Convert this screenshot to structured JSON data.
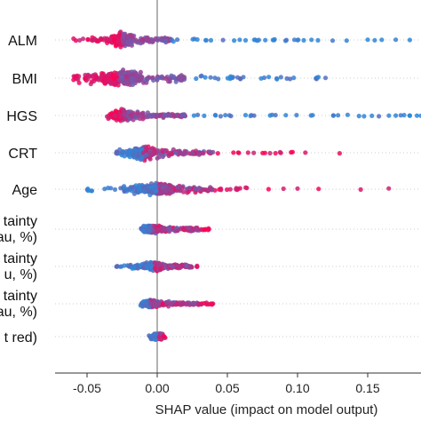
{
  "chart_data": {
    "type": "scatter",
    "subtype": "shap-beeswarm",
    "title": "",
    "xlabel": "SHAP value (impact on model output)",
    "ylabel": "",
    "xlim": [
      -0.07,
      0.19
    ],
    "xticks": [
      {
        "value": -0.05,
        "label": "-0.05"
      },
      {
        "value": 0.0,
        "label": "0.00"
      },
      {
        "value": 0.05,
        "label": "0.05"
      },
      {
        "value": 0.1,
        "label": "0.10"
      },
      {
        "value": 0.15,
        "label": "0.15"
      }
    ],
    "grid": false,
    "legend": "none",
    "colors": {
      "low": "#2e86d8",
      "high": "#ff0052",
      "zero_line": "#999999",
      "row_line": "#cccccc"
    },
    "features": [
      {
        "label": "ALM",
        "core": [
          -0.03,
          -0.02
        ],
        "mid_lo": -0.05,
        "mid_hi": 0.01,
        "tail_lo": -0.06,
        "tail_hi": 0.12,
        "high_side": "left",
        "spread": 1.0,
        "outliers": [
          0.125,
          0.135,
          0.15,
          0.155,
          0.16,
          0.17,
          0.18
        ]
      },
      {
        "label": "BMI",
        "core": [
          -0.04,
          -0.015
        ],
        "mid_lo": -0.06,
        "mid_hi": 0.02,
        "tail_lo": -0.065,
        "tail_hi": 0.12,
        "high_side": "left",
        "spread": 1.2,
        "outliers": []
      },
      {
        "label": "HGS",
        "core": [
          -0.03,
          -0.02
        ],
        "mid_lo": -0.035,
        "mid_hi": 0.02,
        "tail_lo": -0.04,
        "tail_hi": 0.19,
        "high_side": "left",
        "spread": 0.8,
        "outliers": [
          0.17,
          0.18,
          0.188
        ]
      },
      {
        "label": "CRT",
        "core": [
          -0.015,
          -0.005
        ],
        "mid_lo": -0.03,
        "mid_hi": 0.04,
        "tail_lo": -0.03,
        "tail_hi": 0.12,
        "high_side": "right",
        "spread": 1.0,
        "outliers": [
          0.13
        ]
      },
      {
        "label": "Age",
        "core": [
          -0.01,
          0.01
        ],
        "mid_lo": -0.025,
        "mid_hi": 0.04,
        "tail_lo": -0.05,
        "tail_hi": 0.08,
        "high_side": "right",
        "spread": 0.9,
        "outliers": [
          0.09,
          0.1,
          0.115,
          0.145,
          0.165
        ]
      },
      {
        "label": "tainty",
        "line2": "au, %)",
        "core": [
          -0.008,
          0.0
        ],
        "mid_lo": -0.01,
        "mid_hi": 0.03,
        "tail_lo": -0.012,
        "tail_hi": 0.04,
        "high_side": "right",
        "spread": 0.55,
        "outliers": []
      },
      {
        "label": "tainty",
        "line2": "u, %)",
        "core": [
          -0.006,
          0.002
        ],
        "mid_lo": -0.02,
        "mid_hi": 0.025,
        "tail_lo": -0.03,
        "tail_hi": 0.03,
        "high_side": "right",
        "spread": 0.6,
        "outliers": []
      },
      {
        "label": "tainty",
        "line2": "au, %)",
        "core": [
          -0.008,
          -0.002
        ],
        "mid_lo": -0.01,
        "mid_hi": 0.03,
        "tail_lo": -0.01,
        "tail_hi": 0.04,
        "high_side": "right",
        "spread": 0.5,
        "outliers": []
      },
      {
        "label": "t red)",
        "core": [
          -0.002,
          0.002
        ],
        "mid_lo": -0.004,
        "mid_hi": 0.004,
        "tail_lo": -0.005,
        "tail_hi": 0.005,
        "high_side": "right",
        "spread": 0.35,
        "outliers": []
      }
    ]
  }
}
